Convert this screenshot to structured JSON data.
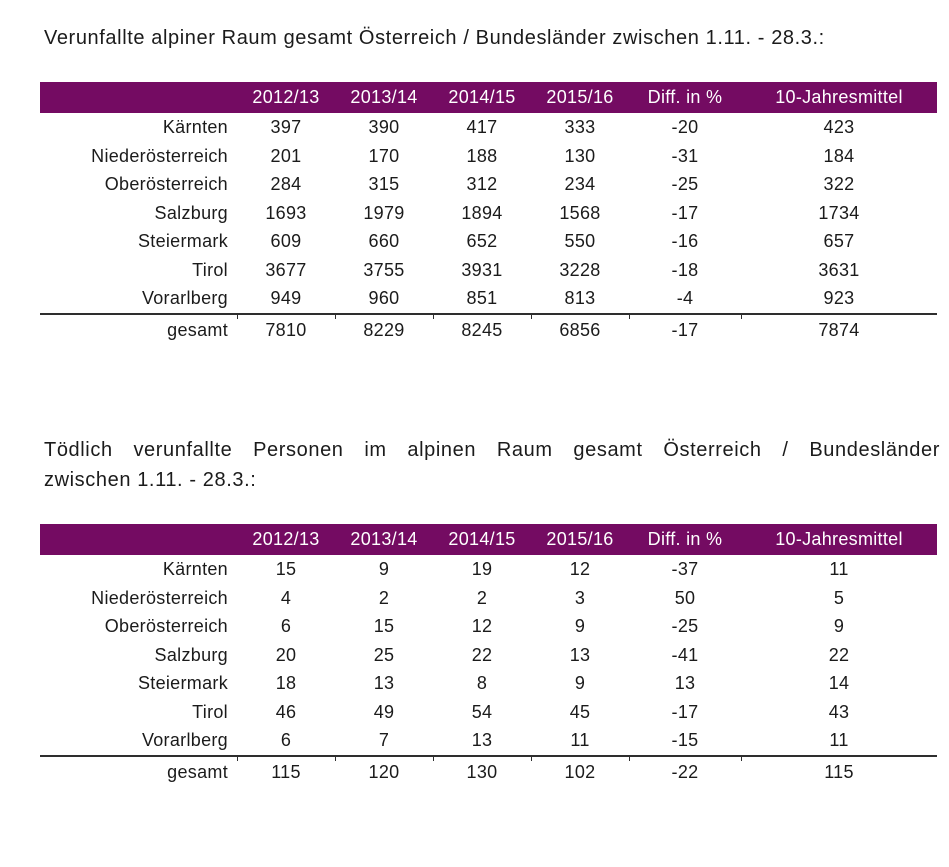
{
  "page": {
    "background_color": "#ffffff",
    "accent_color": "#740b62",
    "text_color": "#1b1b1b",
    "header_text_color": "#ffffff"
  },
  "section1": {
    "title": "Verunfallte alpiner Raum gesamt Österreich / Bundesländer zwischen 1.11. - 28.3.:",
    "table": {
      "columns": [
        "2012/13",
        "2013/14",
        "2014/15",
        "2015/16",
        "Diff. in %",
        "10-Jahresmittel"
      ],
      "rows": [
        {
          "label": "Kärnten",
          "values": [
            "397",
            "390",
            "417",
            "333",
            "-20",
            "423"
          ]
        },
        {
          "label": "Niederösterreich",
          "values": [
            "201",
            "170",
            "188",
            "130",
            "-31",
            "184"
          ]
        },
        {
          "label": "Oberösterreich",
          "values": [
            "284",
            "315",
            "312",
            "234",
            "-25",
            "322"
          ]
        },
        {
          "label": "Salzburg",
          "values": [
            "1693",
            "1979",
            "1894",
            "1568",
            "-17",
            "1734"
          ]
        },
        {
          "label": "Steiermark",
          "values": [
            "609",
            "660",
            "652",
            "550",
            "-16",
            "657"
          ]
        },
        {
          "label": "Tirol",
          "values": [
            "3677",
            "3755",
            "3931",
            "3228",
            "-18",
            "3631"
          ]
        },
        {
          "label": "Vorarlberg",
          "values": [
            "949",
            "960",
            "851",
            "813",
            "-4",
            "923"
          ]
        }
      ],
      "total": {
        "label": "gesamt",
        "values": [
          "7810",
          "8229",
          "8245",
          "6856",
          "-17",
          "7874"
        ]
      }
    }
  },
  "section2": {
    "title_line1": "Tödlich verunfallte Personen im alpinen Raum gesamt Österreich / Bundesländer",
    "title_line2": "zwischen 1.11. - 28.3.:",
    "table": {
      "columns": [
        "2012/13",
        "2013/14",
        "2014/15",
        "2015/16",
        "Diff. in %",
        "10-Jahresmittel"
      ],
      "rows": [
        {
          "label": "Kärnten",
          "values": [
            "15",
            "9",
            "19",
            "12",
            "-37",
            "11"
          ]
        },
        {
          "label": "Niederösterreich",
          "values": [
            "4",
            "2",
            "2",
            "3",
            "50",
            "5"
          ]
        },
        {
          "label": "Oberösterreich",
          "values": [
            "6",
            "15",
            "12",
            "9",
            "-25",
            "9"
          ]
        },
        {
          "label": "Salzburg",
          "values": [
            "20",
            "25",
            "22",
            "13",
            "-41",
            "22"
          ]
        },
        {
          "label": "Steiermark",
          "values": [
            "18",
            "13",
            "8",
            "9",
            "13",
            "14"
          ]
        },
        {
          "label": "Tirol",
          "values": [
            "46",
            "49",
            "54",
            "45",
            "-17",
            "43"
          ]
        },
        {
          "label": "Vorarlberg",
          "values": [
            "6",
            "7",
            "13",
            "11",
            "-15",
            "11"
          ]
        }
      ],
      "total": {
        "label": "gesamt",
        "values": [
          "115",
          "120",
          "130",
          "102",
          "-22",
          "115"
        ]
      }
    }
  }
}
